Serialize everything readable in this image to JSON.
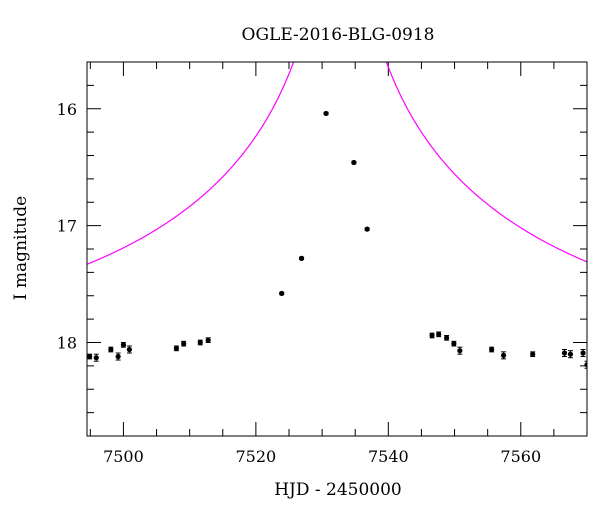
{
  "chart_data": {
    "type": "scatter",
    "title": "OGLE-2016-BLG-0918",
    "xlabel": "HJD - 2450000",
    "ylabel": "I magnitude",
    "xlim": [
      7494.5,
      7570
    ],
    "ylim": [
      18.8,
      15.6
    ],
    "y_inverted": true,
    "grid": false,
    "x_ticks": [
      {
        "value": 7500,
        "label": "7500"
      },
      {
        "value": 7520,
        "label": "7520"
      },
      {
        "value": 7540,
        "label": "7540"
      },
      {
        "value": 7560,
        "label": "7560"
      }
    ],
    "y_ticks": [
      {
        "value": 16,
        "label": "16"
      },
      {
        "value": 17,
        "label": "17"
      },
      {
        "value": 18,
        "label": "18"
      }
    ],
    "series": [
      {
        "kind": "points",
        "color": "#000000",
        "points": [
          {
            "x": 7494.9,
            "y": 18.12,
            "err": 0.02
          },
          {
            "x": 7495.9,
            "y": 18.13,
            "err": 0.03
          },
          {
            "x": 7498.1,
            "y": 18.06,
            "err": 0.02
          },
          {
            "x": 7499.2,
            "y": 18.12,
            "err": 0.03
          },
          {
            "x": 7500.0,
            "y": 18.02,
            "err": 0.02
          },
          {
            "x": 7500.9,
            "y": 18.06,
            "err": 0.03
          },
          {
            "x": 7508.0,
            "y": 18.05,
            "err": 0.02
          },
          {
            "x": 7509.1,
            "y": 18.01,
            "err": 0.02
          },
          {
            "x": 7511.6,
            "y": 18.0,
            "err": 0.02
          },
          {
            "x": 7512.8,
            "y": 17.98,
            "err": 0.02
          },
          {
            "x": 7523.9,
            "y": 17.58,
            "err": 0.01
          },
          {
            "x": 7526.9,
            "y": 17.28,
            "err": 0.01
          },
          {
            "x": 7530.6,
            "y": 16.04,
            "err": 0.01
          },
          {
            "x": 7534.8,
            "y": 16.46,
            "err": 0.01
          },
          {
            "x": 7536.8,
            "y": 17.03,
            "err": 0.01
          },
          {
            "x": 7546.6,
            "y": 17.94,
            "err": 0.02
          },
          {
            "x": 7547.6,
            "y": 17.93,
            "err": 0.02
          },
          {
            "x": 7548.8,
            "y": 17.96,
            "err": 0.02
          },
          {
            "x": 7549.9,
            "y": 18.01,
            "err": 0.02
          },
          {
            "x": 7550.8,
            "y": 18.07,
            "err": 0.03
          },
          {
            "x": 7555.6,
            "y": 18.06,
            "err": 0.02
          },
          {
            "x": 7557.4,
            "y": 18.11,
            "err": 0.03
          },
          {
            "x": 7561.8,
            "y": 18.1,
            "err": 0.02
          },
          {
            "x": 7566.6,
            "y": 18.09,
            "err": 0.03
          },
          {
            "x": 7567.5,
            "y": 18.1,
            "err": 0.03
          },
          {
            "x": 7569.4,
            "y": 18.09,
            "err": 0.03
          },
          {
            "x": 7570.0,
            "y": 18.19,
            "err": 0.03
          }
        ]
      },
      {
        "kind": "model",
        "color": "#ff00ff",
        "model": {
          "t0": 7532.7,
          "u0": 0.0075,
          "tE": 70,
          "baseline": 18.1
        }
      }
    ]
  }
}
